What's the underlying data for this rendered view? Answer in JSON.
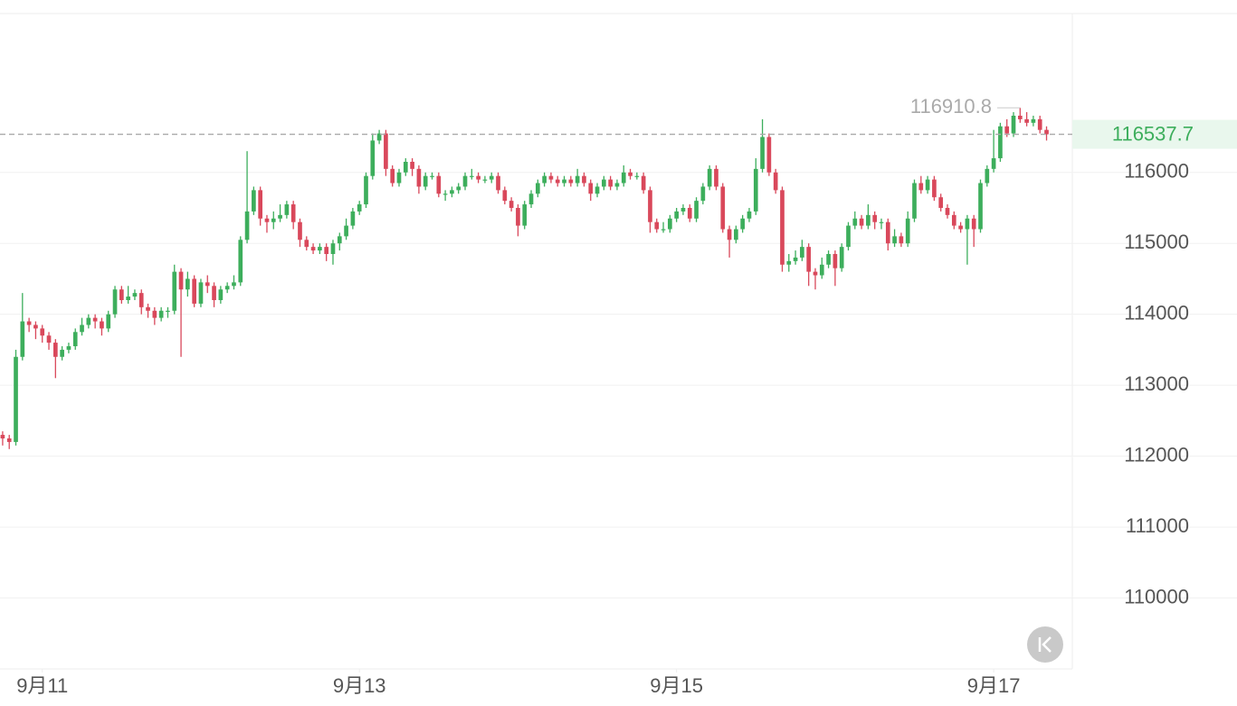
{
  "chart_data": {
    "type": "candlestick",
    "up_color": "#3dae5c",
    "down_color": "#d9485b",
    "open": [
      112300,
      112250,
      112200,
      113400,
      113900,
      113850,
      113800,
      113700,
      113600,
      113400,
      113500,
      113550,
      113750,
      113850,
      113950,
      113900,
      113800,
      114000,
      114350,
      114200,
      114250,
      114300,
      114100,
      114050,
      113950,
      114050,
      114050,
      114600,
      114350,
      114500,
      114150,
      114450,
      114400,
      114200,
      114350,
      114400,
      114450,
      115050,
      115450,
      115750,
      115350,
      115300,
      115350,
      115400,
      115550,
      115300,
      115050,
      114950,
      114900,
      114950,
      114850,
      115000,
      115100,
      115250,
      115450,
      115550,
      115950,
      116450,
      116550,
      116050,
      115850,
      116000,
      116150,
      116050,
      115800,
      115950,
      115950,
      115700,
      115700,
      115750,
      115800,
      115950,
      115950,
      115900,
      115900,
      115950,
      115750,
      115600,
      115500,
      115250,
      115550,
      115700,
      115850,
      115950,
      115900,
      115850,
      115900,
      115850,
      115950,
      115850,
      115700,
      115800,
      115900,
      115800,
      115850,
      116000,
      115950,
      115950,
      115750,
      115300,
      115200,
      115200,
      115350,
      115450,
      115500,
      115350,
      115600,
      115800,
      116050,
      115800,
      115200,
      115050,
      115200,
      115350,
      115450,
      116050,
      116500,
      116000,
      115750,
      114700,
      114750,
      114800,
      114950,
      114600,
      114550,
      114700,
      114850,
      114650,
      114950,
      115250,
      115350,
      115250,
      115400,
      115300,
      115300,
      115000,
      115100,
      115000,
      115350,
      115850,
      115750,
      115900,
      115650,
      115500,
      115400,
      115250,
      115200,
      115350,
      115200,
      115850,
      116050,
      116200,
      116650,
      116550,
      116800,
      116750,
      116700,
      116750,
      116600
    ],
    "high": [
      112350,
      112300,
      113500,
      114300,
      113950,
      113900,
      113850,
      113750,
      113650,
      113550,
      113600,
      113800,
      113950,
      114000,
      114000,
      113950,
      114050,
      114400,
      114400,
      114400,
      114350,
      114350,
      114150,
      114100,
      114100,
      114100,
      114700,
      114650,
      114600,
      114550,
      114500,
      114550,
      114450,
      114400,
      114450,
      114550,
      115100,
      116300,
      115800,
      115800,
      115400,
      115450,
      115550,
      115600,
      115600,
      115350,
      115100,
      115000,
      115000,
      115000,
      115050,
      115150,
      115350,
      115500,
      115600,
      116000,
      116550,
      116600,
      116600,
      116100,
      116050,
      116200,
      116200,
      116100,
      116000,
      116000,
      116000,
      115750,
      115800,
      115850,
      116000,
      116050,
      116000,
      115950,
      116000,
      116000,
      115800,
      115650,
      115550,
      115600,
      115750,
      115900,
      116000,
      116000,
      115950,
      115950,
      115950,
      116050,
      116000,
      115900,
      115850,
      115950,
      115950,
      115900,
      116100,
      116050,
      116000,
      116000,
      115800,
      115350,
      115300,
      115400,
      115500,
      115550,
      115550,
      115650,
      115850,
      116100,
      116100,
      115850,
      115250,
      115250,
      115400,
      115500,
      116200,
      116750,
      116550,
      116050,
      115800,
      114850,
      114900,
      115050,
      115000,
      114650,
      114800,
      114900,
      114900,
      115000,
      115300,
      115450,
      115400,
      115550,
      115450,
      115350,
      115350,
      115200,
      115150,
      115450,
      115900,
      115950,
      115950,
      115950,
      115700,
      115550,
      115450,
      115300,
      115400,
      115400,
      115900,
      116100,
      116600,
      116700,
      116750,
      116850,
      116910.8,
      116850,
      116800,
      116800,
      116650
    ],
    "low": [
      112150,
      112100,
      112150,
      113350,
      113750,
      113650,
      113600,
      113500,
      113100,
      113350,
      113450,
      113500,
      113700,
      113800,
      113800,
      113700,
      113750,
      113950,
      114150,
      114150,
      114200,
      114000,
      113950,
      113850,
      113900,
      113950,
      114000,
      113400,
      114250,
      114100,
      114100,
      114300,
      114100,
      114150,
      114300,
      114350,
      114400,
      115000,
      115400,
      115250,
      115150,
      115200,
      115300,
      115350,
      115200,
      114950,
      114900,
      114850,
      114850,
      114750,
      114700,
      114900,
      115050,
      115200,
      115400,
      115500,
      115900,
      116400,
      115950,
      115800,
      115800,
      115950,
      115950,
      115700,
      115750,
      115900,
      115650,
      115600,
      115650,
      115700,
      115750,
      115900,
      115850,
      115850,
      115850,
      115700,
      115550,
      115450,
      115100,
      115200,
      115500,
      115650,
      115800,
      115850,
      115800,
      115800,
      115800,
      115800,
      115800,
      115600,
      115650,
      115750,
      115750,
      115750,
      115800,
      115900,
      115900,
      115700,
      115150,
      115150,
      115150,
      115150,
      115300,
      115400,
      115300,
      115300,
      115550,
      115750,
      115750,
      115150,
      114800,
      115000,
      115150,
      115300,
      115400,
      116000,
      115950,
      115700,
      114600,
      114600,
      114700,
      114750,
      114400,
      114350,
      114500,
      114650,
      114400,
      114600,
      114900,
      115200,
      115200,
      115200,
      115200,
      115200,
      114900,
      114950,
      114950,
      114950,
      115300,
      115700,
      115700,
      115600,
      115450,
      115350,
      115200,
      115150,
      114700,
      114950,
      115150,
      115800,
      116000,
      116150,
      116500,
      116500,
      116700,
      116650,
      116650,
      116550,
      116450
    ],
    "close": [
      112250,
      112200,
      113400,
      113900,
      113850,
      113800,
      113700,
      113600,
      113400,
      113500,
      113550,
      113750,
      113850,
      113950,
      113900,
      113800,
      114000,
      114350,
      114200,
      114250,
      114300,
      114100,
      114050,
      113950,
      114050,
      114050,
      114600,
      114350,
      114500,
      114150,
      114450,
      114400,
      114200,
      114350,
      114400,
      114450,
      115050,
      115450,
      115750,
      115350,
      115300,
      115350,
      115400,
      115550,
      115300,
      115050,
      114950,
      114900,
      114950,
      114850,
      115000,
      115100,
      115250,
      115450,
      115550,
      115950,
      116450,
      116550,
      116050,
      115850,
      116000,
      116150,
      116050,
      115800,
      115950,
      115950,
      115700,
      115700,
      115750,
      115800,
      115950,
      115950,
      115900,
      115900,
      115950,
      115750,
      115600,
      115500,
      115250,
      115550,
      115700,
      115850,
      115950,
      115900,
      115850,
      115900,
      115850,
      115950,
      115850,
      115700,
      115800,
      115900,
      115800,
      115850,
      116000,
      115950,
      115950,
      115750,
      115300,
      115200,
      115200,
      115350,
      115450,
      115500,
      115350,
      115600,
      115800,
      116050,
      115800,
      115200,
      115050,
      115200,
      115350,
      115450,
      116050,
      116500,
      116000,
      115750,
      114700,
      114750,
      114800,
      114950,
      114600,
      114550,
      114700,
      114850,
      114650,
      114950,
      115250,
      115350,
      115250,
      115400,
      115300,
      115300,
      115000,
      115100,
      115000,
      115350,
      115850,
      115750,
      115900,
      115650,
      115500,
      115400,
      115250,
      115200,
      115350,
      115200,
      115850,
      116050,
      116200,
      116650,
      116550,
      116800,
      116750,
      116700,
      116750,
      116600,
      116537.7
    ],
    "ylim": [
      109000,
      118240
    ],
    "yticks": [
      110000,
      111000,
      112000,
      113000,
      114000,
      115000,
      116000
    ],
    "xlim": [
      -0.4,
      161.9
    ],
    "xticks": [
      {
        "value": 6,
        "label": "9月11"
      },
      {
        "value": 54,
        "label": "9月13"
      },
      {
        "value": 102,
        "label": "9月15"
      },
      {
        "value": 150,
        "label": "9月17"
      }
    ],
    "grid": true
  }
}
